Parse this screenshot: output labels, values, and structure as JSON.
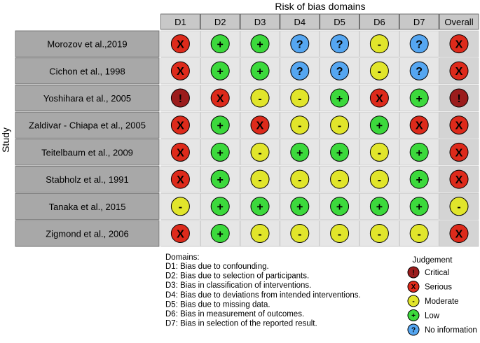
{
  "chart_data": {
    "type": "table",
    "title": "Risk of bias domains",
    "ylabel": "Study",
    "columns": [
      "D1",
      "D2",
      "D3",
      "D4",
      "D5",
      "D6",
      "D7",
      "Overall"
    ],
    "studies": [
      {
        "name": "Morozov et al.,2019",
        "judgements": [
          "serious",
          "low",
          "low",
          "no_info",
          "no_info",
          "moderate",
          "no_info",
          "serious"
        ]
      },
      {
        "name": "Cichon et al., 1998",
        "judgements": [
          "serious",
          "low",
          "low",
          "no_info",
          "no_info",
          "moderate",
          "no_info",
          "serious"
        ]
      },
      {
        "name": "Yoshihara et al., 2005",
        "judgements": [
          "critical",
          "serious",
          "moderate",
          "moderate",
          "low",
          "serious",
          "low",
          "critical"
        ]
      },
      {
        "name": "Zaldivar - Chiapa et al., 2005",
        "judgements": [
          "serious",
          "low",
          "serious",
          "moderate",
          "moderate",
          "low",
          "serious",
          "serious"
        ]
      },
      {
        "name": "Teitelbaum et al., 2009",
        "judgements": [
          "serious",
          "low",
          "moderate",
          "low",
          "low",
          "moderate",
          "low",
          "serious"
        ]
      },
      {
        "name": "Stabholz et al., 1991",
        "judgements": [
          "serious",
          "low",
          "moderate",
          "moderate",
          "moderate",
          "moderate",
          "low",
          "serious"
        ]
      },
      {
        "name": "Tanaka et al., 2015",
        "judgements": [
          "moderate",
          "low",
          "low",
          "low",
          "low",
          "low",
          "low",
          "moderate"
        ]
      },
      {
        "name": "Zigmond et al., 2006",
        "judgements": [
          "serious",
          "low",
          "moderate",
          "moderate",
          "moderate",
          "moderate",
          "moderate",
          "serious"
        ]
      }
    ],
    "domains_title": "Domains:",
    "domains": [
      "D1: Bias due to confounding.",
      "D2: Bias due to selection of participants.",
      "D3: Bias in classification of interventions.",
      "D4: Bias due to deviations from intended interventions.",
      "D5: Bias due to missing data.",
      "D6: Bias in measurement of outcomes.",
      "D7: Bias in selection of the reported result."
    ],
    "legend_title": "Judgement",
    "legend": [
      {
        "key": "critical",
        "label": "Critical"
      },
      {
        "key": "serious",
        "label": "Serious"
      },
      {
        "key": "moderate",
        "label": "Moderate"
      },
      {
        "key": "low",
        "label": "Low"
      },
      {
        "key": "no_info",
        "label": "No information"
      }
    ],
    "symbols": {
      "critical": {
        "glyph": "!",
        "color": "#9b1c1c"
      },
      "serious": {
        "glyph": "X",
        "color": "#dd2a1b"
      },
      "moderate": {
        "glyph": "-",
        "color": "#e1e52b"
      },
      "low": {
        "glyph": "+",
        "color": "#3cd93c"
      },
      "no_info": {
        "glyph": "?",
        "color": "#55a6f1"
      }
    },
    "colors": {
      "header_fill": "#c8c8c8",
      "study_fill": "#a8a8a8",
      "overall_fill": "#d4d4d4",
      "cell_fill": "#e6e6e6"
    }
  }
}
